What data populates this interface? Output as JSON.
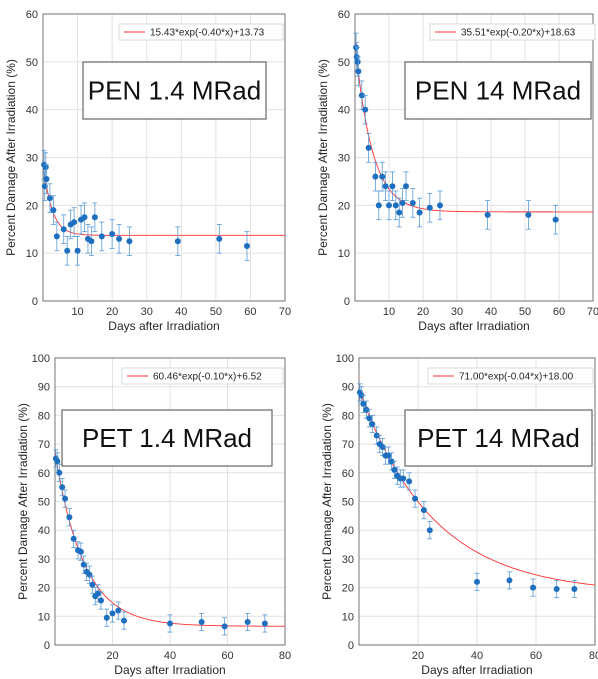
{
  "chart_data": [
    {
      "type": "scatter",
      "title": "PEN 1.4 MRad",
      "xlabel": "Days after Irradiation",
      "ylabel": "Percent Damage After Irradiation (%)",
      "xlim": [
        0,
        70
      ],
      "ylim": [
        0,
        60
      ],
      "xticks": [
        10,
        20,
        30,
        40,
        50,
        60,
        70
      ],
      "yticks": [
        0,
        10,
        20,
        30,
        40,
        50,
        60
      ],
      "grid": true,
      "legend_position": "top-right",
      "fit": {
        "label": "15.43*exp(-0.40*x)+13.73",
        "a": 15.43,
        "b": -0.4,
        "c": 13.73,
        "color": "#ff3030"
      },
      "series": [
        {
          "color": "#1f6fc0",
          "x": [
            0.3,
            0.5,
            0.8,
            1.0,
            2.0,
            3.0,
            4.0,
            6.0,
            7.0,
            8.0,
            9.0,
            10.0,
            11.0,
            12.0,
            13.0,
            14.0,
            15.0,
            17.0,
            20.0,
            22.0,
            25.0,
            39.0,
            51.0,
            59.0
          ],
          "y": [
            28.5,
            24.0,
            28.0,
            25.5,
            21.5,
            19.0,
            13.5,
            15.0,
            10.5,
            16.0,
            16.5,
            10.5,
            17.0,
            17.5,
            13.0,
            12.5,
            17.5,
            13.5,
            14.0,
            13.0,
            12.5,
            12.5,
            13.0,
            11.5
          ],
          "err": [
            3.0,
            3.0,
            3.0,
            3.0,
            3.0,
            3.0,
            3.0,
            3.0,
            3.0,
            3.0,
            3.0,
            3.0,
            3.0,
            3.0,
            3.0,
            3.0,
            3.0,
            3.0,
            3.0,
            3.0,
            3.0,
            3.0,
            3.0,
            3.0
          ]
        }
      ]
    },
    {
      "type": "scatter",
      "title": "PEN 14 MRad",
      "xlabel": "Days after Irradiation",
      "ylabel": "Percent Damage After Irradiation (%)",
      "xlim": [
        0,
        70
      ],
      "ylim": [
        0,
        60
      ],
      "xticks": [
        10,
        20,
        30,
        40,
        50,
        60,
        70
      ],
      "yticks": [
        0,
        10,
        20,
        30,
        40,
        50,
        60
      ],
      "grid": true,
      "legend_position": "top-right",
      "fit": {
        "label": "35.51*exp(-0.20*x)+18.63",
        "a": 35.51,
        "b": -0.2,
        "c": 18.63,
        "color": "#ff3030"
      },
      "series": [
        {
          "color": "#1f6fc0",
          "x": [
            0.3,
            0.5,
            0.8,
            1.0,
            2.0,
            3.0,
            4.0,
            6.0,
            7.0,
            8.0,
            9.0,
            10.0,
            11.0,
            12.0,
            13.0,
            14.0,
            15.0,
            17.0,
            19.0,
            22.0,
            25.0,
            39.0,
            51.0,
            59.0
          ],
          "y": [
            53.0,
            51.0,
            50.0,
            48.0,
            43.0,
            40.0,
            32.0,
            26.0,
            20.0,
            26.0,
            24.0,
            20.0,
            24.0,
            20.0,
            18.5,
            20.5,
            24.0,
            20.5,
            18.5,
            19.5,
            20.0,
            18.0,
            18.0,
            17.0
          ],
          "err": [
            3.0,
            3.0,
            3.0,
            3.0,
            3.0,
            3.0,
            3.0,
            3.0,
            3.0,
            3.0,
            3.0,
            3.0,
            3.0,
            3.0,
            3.0,
            3.0,
            3.0,
            3.0,
            3.0,
            3.0,
            3.0,
            3.0,
            3.0,
            3.0
          ]
        }
      ]
    },
    {
      "type": "scatter",
      "title": "PET 1.4 MRad",
      "xlabel": "Days after Irradiation",
      "ylabel": "Percent Damage After Irradiation (%)",
      "xlim": [
        0,
        80
      ],
      "ylim": [
        0,
        100
      ],
      "xticks": [
        20,
        40,
        60,
        80
      ],
      "yticks": [
        0,
        10,
        20,
        30,
        40,
        50,
        60,
        70,
        80,
        90,
        100
      ],
      "grid": true,
      "legend_position": "top-right",
      "fit": {
        "label": "60.46*exp(-0.10*x)+6.52",
        "a": 60.46,
        "b": -0.1,
        "c": 6.52,
        "color": "#ff3030"
      },
      "series": [
        {
          "color": "#1f6fc0",
          "x": [
            0.3,
            0.8,
            1.5,
            2.5,
            3.5,
            5.0,
            6.5,
            8.0,
            9.0,
            10.0,
            11.0,
            12.0,
            13.0,
            14.0,
            15.0,
            16.0,
            18.0,
            20.0,
            22.0,
            24.0,
            40.0,
            51.0,
            59.0,
            67.0,
            73.0
          ],
          "y": [
            65.0,
            64.0,
            60.0,
            55.0,
            51.0,
            44.5,
            37.0,
            33.0,
            32.5,
            28.0,
            25.5,
            24.5,
            21.0,
            17.0,
            18.0,
            15.5,
            9.5,
            11.0,
            12.0,
            8.5,
            7.5,
            8.0,
            6.5,
            8.0,
            7.5
          ],
          "err": [
            3.0,
            3.0,
            3.0,
            3.0,
            3.0,
            3.0,
            3.0,
            3.0,
            3.0,
            3.0,
            3.0,
            3.0,
            3.0,
            3.0,
            3.0,
            3.0,
            3.0,
            3.0,
            3.0,
            3.0,
            3.0,
            3.0,
            3.0,
            3.0,
            3.0
          ]
        }
      ]
    },
    {
      "type": "scatter",
      "title": "PET 14 MRad",
      "xlabel": "Days after Irradiation",
      "ylabel": "Percent Damage After Irradiation (%)",
      "xlim": [
        0,
        80
      ],
      "ylim": [
        0,
        100
      ],
      "xticks": [
        20,
        40,
        60,
        80
      ],
      "yticks": [
        0,
        10,
        20,
        30,
        40,
        50,
        60,
        70,
        80,
        90,
        100
      ],
      "grid": true,
      "legend_position": "top-right",
      "fit": {
        "label": "71.00*exp(-0.04*x)+18.00",
        "a": 71.0,
        "b": -0.04,
        "c": 18.0,
        "color": "#ff3030"
      },
      "series": [
        {
          "color": "#1f6fc0",
          "x": [
            0.3,
            0.8,
            1.5,
            2.5,
            3.5,
            4.5,
            6.0,
            7.0,
            8.0,
            9.0,
            10.0,
            11.0,
            12.0,
            13.0,
            14.0,
            15.0,
            17.0,
            19.0,
            22.0,
            24.0,
            40.0,
            51.0,
            59.0,
            67.0,
            73.0
          ],
          "y": [
            88.0,
            87.0,
            84.0,
            82.0,
            79.0,
            77.0,
            73.0,
            70.0,
            69.0,
            66.0,
            66.0,
            64.0,
            61.0,
            59.0,
            58.0,
            58.0,
            57.0,
            51.0,
            47.0,
            40.0,
            22.0,
            22.5,
            20.0,
            19.5,
            19.5
          ],
          "err": [
            3.0,
            3.0,
            3.0,
            3.0,
            3.0,
            3.0,
            3.0,
            3.0,
            3.0,
            3.0,
            3.0,
            3.0,
            3.0,
            3.0,
            3.0,
            3.0,
            3.0,
            3.0,
            3.0,
            3.0,
            3.0,
            3.0,
            3.0,
            3.0,
            3.0
          ]
        }
      ]
    }
  ]
}
